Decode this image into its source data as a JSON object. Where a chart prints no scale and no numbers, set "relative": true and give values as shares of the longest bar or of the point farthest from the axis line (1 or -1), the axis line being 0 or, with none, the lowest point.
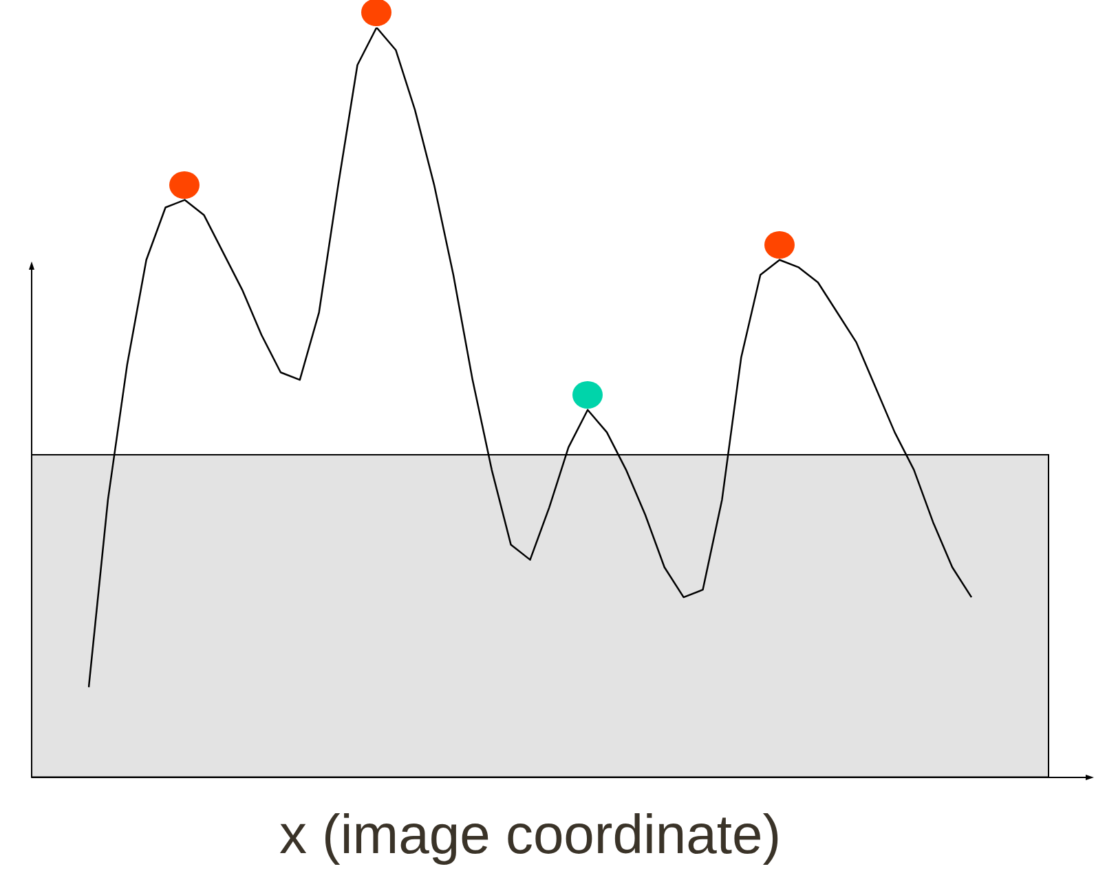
{
  "chart_data": {
    "type": "line",
    "xlabel": "x (image coordinate)",
    "relative": true,
    "grid": false,
    "legend": false,
    "line_style": "solid",
    "categories": [
      null,
      null,
      null,
      null,
      null,
      null,
      null,
      null,
      null,
      null,
      null,
      null,
      null,
      null,
      null,
      null,
      null,
      null,
      null,
      null,
      null,
      null,
      null,
      null,
      null,
      null,
      null,
      null,
      null,
      null,
      null,
      null,
      null,
      null,
      null,
      null,
      null,
      null,
      null,
      null,
      null,
      null,
      null,
      null,
      null,
      null,
      null
    ],
    "bands": [
      {
        "axis": "y",
        "from": 0,
        "to": 0.43,
        "color": "#e3e3e3"
      }
    ],
    "series": [
      {
        "color": "#000000",
        "values": [
          0.12,
          0.37,
          0.55,
          0.69,
          0.76,
          0.77,
          0.75,
          0.7,
          0.65,
          0.59,
          0.54,
          0.53,
          0.62,
          0.79,
          0.95,
          1,
          0.97,
          0.89,
          0.79,
          0.67,
          0.53,
          0.41,
          0.31,
          0.29,
          0.36,
          0.44,
          0.49,
          0.46,
          0.41,
          0.35,
          0.28,
          0.24,
          0.25,
          0.37,
          0.56,
          0.67,
          0.69,
          0.68,
          0.66,
          0.62,
          0.58,
          0.52,
          0.46,
          0.41,
          0.34,
          0.28,
          0.24
        ]
      }
    ]
  }
}
